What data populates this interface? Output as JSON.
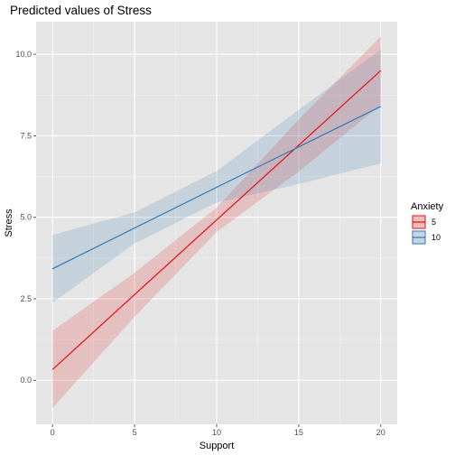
{
  "chart_data": {
    "type": "line",
    "title": "Predicted values of Stress",
    "xlabel": "Support",
    "ylabel": "Stress",
    "xlim": [
      -1,
      21
    ],
    "ylim": [
      -1.35,
      11.0
    ],
    "x_ticks": [
      0,
      5,
      10,
      15,
      20
    ],
    "x_tick_labels": [
      "0",
      "5",
      "10",
      "15",
      "20"
    ],
    "y_ticks": [
      0.0,
      2.5,
      5.0,
      7.5,
      10.0
    ],
    "y_tick_labels": [
      "0.0",
      "2.5",
      "5.0",
      "7.5",
      "10.0"
    ],
    "grid": true,
    "legend": {
      "title": "Anxiety",
      "position": "right"
    },
    "series": [
      {
        "name": "5",
        "color": "#e41a1c",
        "x": [
          0,
          5,
          10,
          15,
          20
        ],
        "y": [
          0.33,
          2.63,
          4.92,
          7.21,
          9.5
        ],
        "lower": [
          -0.85,
          1.95,
          4.55,
          6.4,
          8.45
        ],
        "upper": [
          1.52,
          3.3,
          5.3,
          8.0,
          10.55
        ]
      },
      {
        "name": "10",
        "color": "#377eb8",
        "x": [
          0,
          5,
          10,
          15,
          20
        ],
        "y": [
          3.42,
          4.67,
          5.92,
          7.16,
          8.4
        ],
        "lower": [
          2.38,
          4.2,
          5.45,
          6.02,
          6.65
        ],
        "upper": [
          4.46,
          5.15,
          6.42,
          8.3,
          10.15
        ]
      }
    ]
  }
}
